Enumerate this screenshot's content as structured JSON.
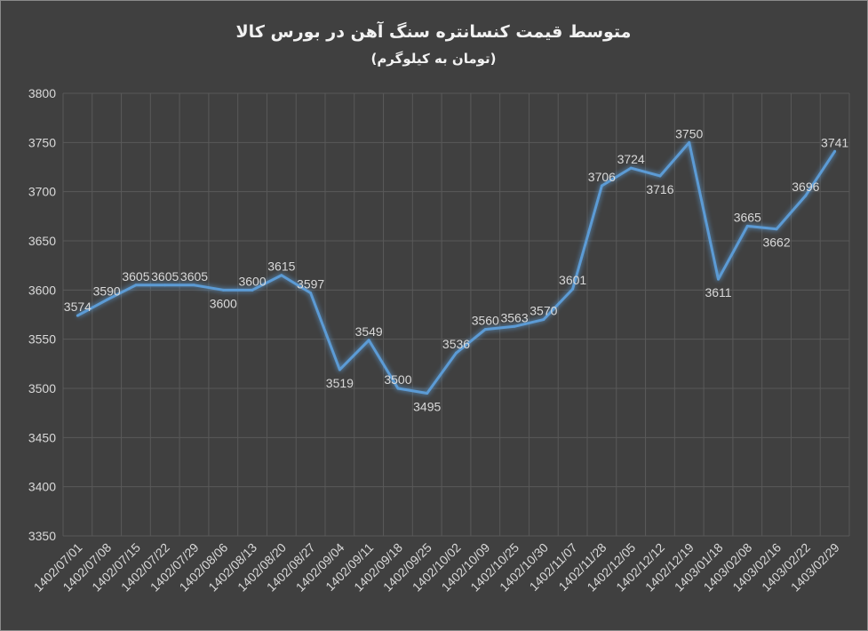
{
  "chart_data": {
    "type": "line",
    "title": "متوسط قیمت کنسانتره سنگ آهن در بورس کالا",
    "subtitle": "(تومان به کیلوگرم)",
    "xlabel": "",
    "ylabel": "",
    "ylim": [
      3350,
      3800
    ],
    "ytick_step": 50,
    "grid": true,
    "legend": "none",
    "line_color": "#5b9bd5",
    "background_color": "#404040",
    "categories": [
      "1402/07/01",
      "1402/07/08",
      "1402/07/15",
      "1402/07/22",
      "1402/07/29",
      "1402/08/06",
      "1402/08/13",
      "1402/08/20",
      "1402/08/27",
      "1402/09/04",
      "1402/09/11",
      "1402/09/18",
      "1402/09/25",
      "1402/10/02",
      "1402/10/09",
      "1402/10/25",
      "1402/10/30",
      "1402/11/07",
      "1402/11/28",
      "1402/12/05",
      "1402/12/12",
      "1402/12/19",
      "1403/01/18",
      "1403/02/08",
      "1403/02/16",
      "1403/02/22",
      "1403/02/29"
    ],
    "values": [
      3574,
      3590,
      3605,
      3605,
      3605,
      3600,
      3600,
      3615,
      3597,
      3519,
      3549,
      3500,
      3495,
      3536,
      3560,
      3563,
      3570,
      3601,
      3706,
      3724,
      3716,
      3750,
      3611,
      3665,
      3662,
      3696,
      3741
    ]
  }
}
